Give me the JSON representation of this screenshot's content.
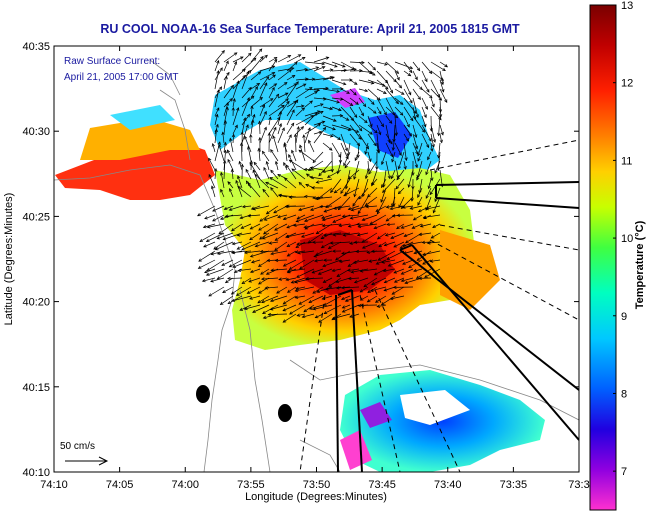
{
  "chart_data": {
    "type": "heatmap",
    "title": "RU COOL  NOAA-16  Sea Surface Temperature:  April 21, 2005 1815 GMT",
    "annotation_lines": [
      "Raw Surface Current:",
      "April 21, 2005 17:00 GMT"
    ],
    "scale_label": "50 cm/s",
    "xlabel": "Longitude (Degrees:Minutes)",
    "ylabel": "Latitude (Degrees:Minutes)",
    "x_ticks": [
      "74:10",
      "74:05",
      "74:00",
      "73:55",
      "73:50",
      "73:45",
      "73:40",
      "73:35",
      "73:3"
    ],
    "y_ticks": [
      "40:35",
      "40:30",
      "40:25",
      "40:20",
      "40:15",
      "40:10"
    ],
    "xlim": [
      "74:10 W",
      "73:30 W"
    ],
    "ylim": [
      "40:10 N",
      "40:35 N"
    ],
    "colorbar": {
      "label": "Temperature (°C)",
      "range": [
        6.5,
        13
      ],
      "ticks": [
        "13",
        "12",
        "11",
        "10",
        "9",
        "8",
        "7"
      ]
    },
    "colors": {
      "title": "#1a1aa0",
      "annotation": "#1a1aa0",
      "land": "#ffffff",
      "frame": "#000000"
    }
  }
}
